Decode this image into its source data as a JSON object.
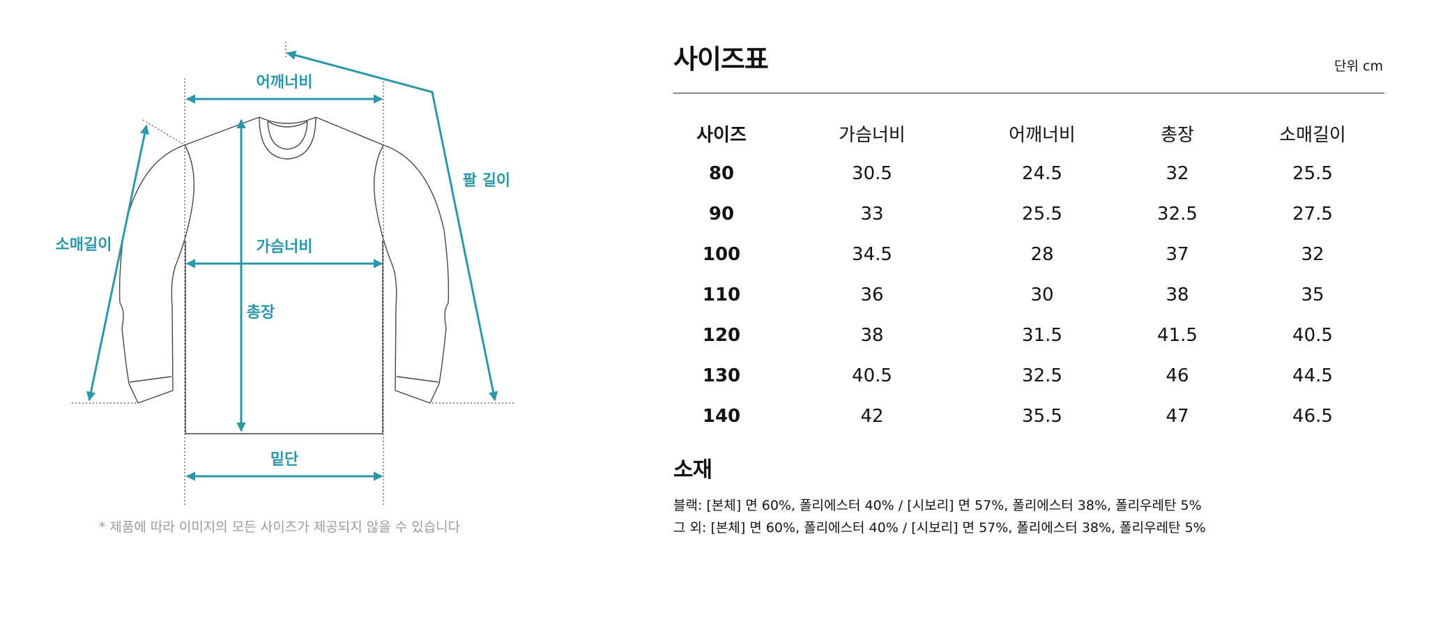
{
  "diagram": {
    "labels": {
      "shoulder": "어깨너비",
      "arm_length": "팔 길이",
      "sleeve": "소매길이",
      "chest": "가슴너비",
      "length": "총장",
      "hem": "밑단"
    },
    "note": "* 제품에 따라 이미지의 모든 사이즈가 제공되지 않을 수 있습니다",
    "accent_color": "#2a97a8"
  },
  "size_chart": {
    "title": "사이즈표",
    "unit": "단위 cm",
    "headers": [
      "사이즈",
      "가슴너비",
      "어깨너비",
      "총장",
      "소매길이"
    ],
    "rows": [
      [
        "80",
        "30.5",
        "24.5",
        "32",
        "25.5"
      ],
      [
        "90",
        "33",
        "25.5",
        "32.5",
        "27.5"
      ],
      [
        "100",
        "34.5",
        "28",
        "37",
        "32"
      ],
      [
        "110",
        "36",
        "30",
        "38",
        "35"
      ],
      [
        "120",
        "38",
        "31.5",
        "41.5",
        "40.5"
      ],
      [
        "130",
        "40.5",
        "32.5",
        "46",
        "44.5"
      ],
      [
        "140",
        "42",
        "35.5",
        "47",
        "46.5"
      ]
    ]
  },
  "material": {
    "title": "소재",
    "lines": [
      "블랙: [본체] 면 60%, 폴리에스터 40% / [시보리] 면 57%, 폴리에스터 38%, 폴리우레탄 5%",
      "그 외: [본체] 면 60%, 폴리에스터 40% / [시보리] 면 57%, 폴리에스터 38%, 폴리우레탄 5%"
    ]
  }
}
